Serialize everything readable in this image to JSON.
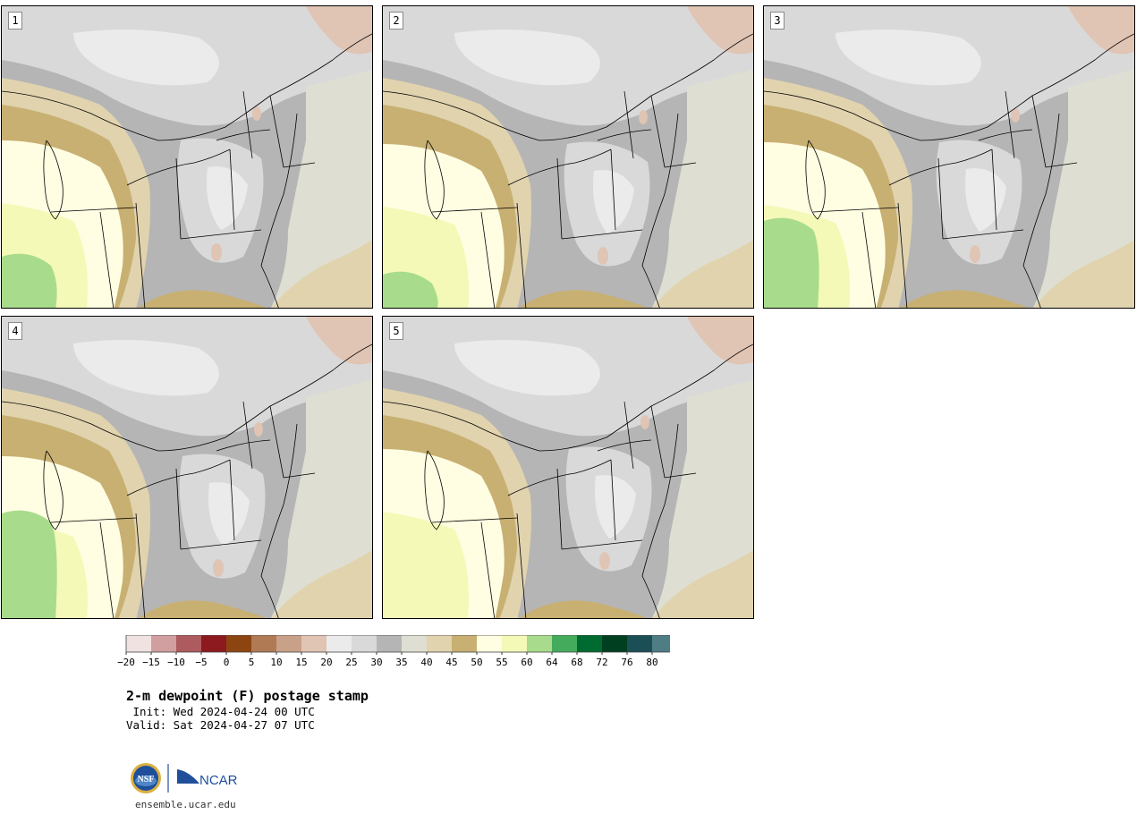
{
  "panels": [
    {
      "label": "1"
    },
    {
      "label": "2"
    },
    {
      "label": "3"
    },
    {
      "label": "4"
    },
    {
      "label": "5"
    }
  ],
  "colorbar": {
    "levels": [
      {
        "tick": "−20",
        "color": "#f0e2e0"
      },
      {
        "tick": "−15",
        "color": "#d19fa0"
      },
      {
        "tick": "−10",
        "color": "#ad5b5e"
      },
      {
        "tick": "−5",
        "color": "#8c1a1f"
      },
      {
        "tick": "0",
        "color": "#8c4510"
      },
      {
        "tick": "5",
        "color": "#b07a55"
      },
      {
        "tick": "10",
        "color": "#c9a088"
      },
      {
        "tick": "15",
        "color": "#e0c4b4"
      },
      {
        "tick": "20",
        "color": "#ebebeb"
      },
      {
        "tick": "25",
        "color": "#d9d9d9"
      },
      {
        "tick": "30",
        "color": "#b5b5b5"
      },
      {
        "tick": "35",
        "color": "#dedfd2"
      },
      {
        "tick": "40",
        "color": "#e0d3ae"
      },
      {
        "tick": "45",
        "color": "#c8b072"
      },
      {
        "tick": "50",
        "color": "#fffee2"
      },
      {
        "tick": "55",
        "color": "#f4f9b8"
      },
      {
        "tick": "60",
        "color": "#a8dc8c"
      },
      {
        "tick": "64",
        "color": "#44ab5d"
      },
      {
        "tick": "68",
        "color": "#006b31"
      },
      {
        "tick": "72",
        "color": "#013f21"
      },
      {
        "tick": "76",
        "color": "#1c4e55"
      },
      {
        "tick": "80",
        "color": "#4f7d84"
      }
    ]
  },
  "title": {
    "main": "2-m dewpoint (F) postage stamp",
    "init": " Init: Wed 2024-04-24 00 UTC",
    "valid": "Valid: Sat 2024-04-27 07 UTC"
  },
  "footer": {
    "logo_nsf": "NSF",
    "logo_ncar": "NCAR",
    "url": "ensemble.ucar.edu"
  }
}
